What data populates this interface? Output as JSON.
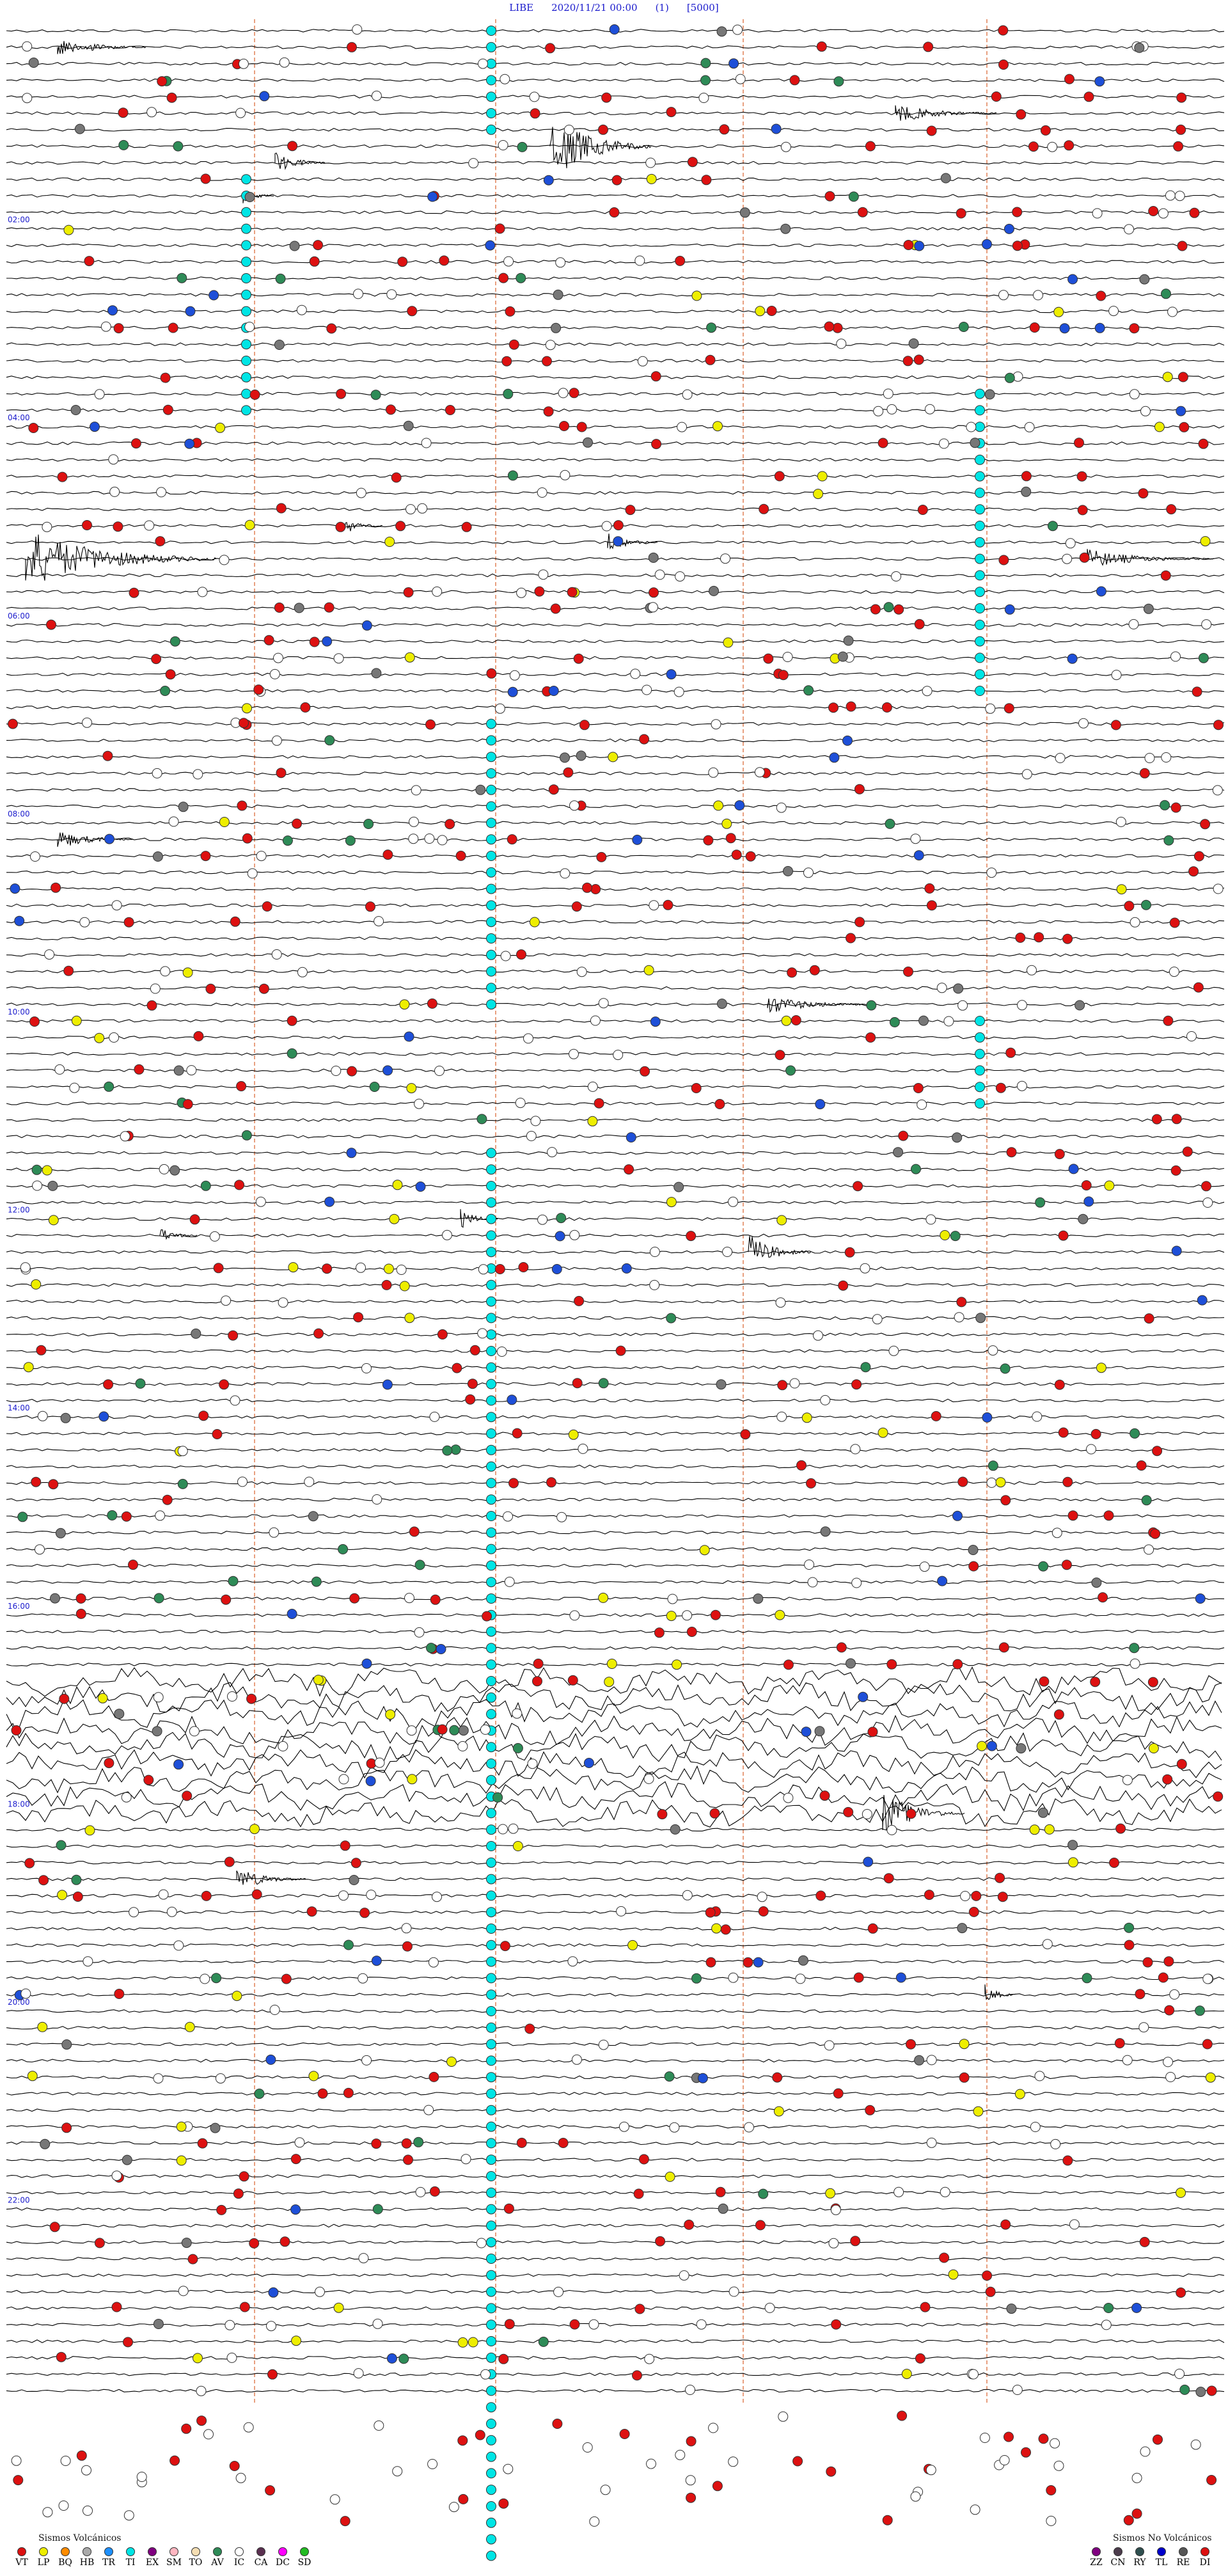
{
  "header": {
    "station": "LIBE",
    "datetime": "2020/11/21 00:00",
    "channel": "(1)",
    "scale": "[5000]"
  },
  "hour_labels": [
    "02:00",
    "04:00",
    "06:00",
    "08:00",
    "10:00",
    "12:00",
    "14:00",
    "16:00",
    "18:00",
    "20:00",
    "22:00"
  ],
  "legend_volcanic": {
    "title": "Sismos Volcánicos",
    "items": [
      {
        "code": "VT",
        "color": "#dd1111"
      },
      {
        "code": "LP",
        "color": "#eeee00"
      },
      {
        "code": "BQ",
        "color": "#ff8c00"
      },
      {
        "code": "HB",
        "color": "#aaaaaa"
      },
      {
        "code": "TR",
        "color": "#1e90ff"
      },
      {
        "code": "TI",
        "color": "#00e5e5"
      },
      {
        "code": "EX",
        "color": "#800080"
      },
      {
        "code": "SM",
        "color": "#ffb6c1"
      },
      {
        "code": "TO",
        "color": "#f5deb3"
      },
      {
        "code": "AV",
        "color": "#2e8b57"
      },
      {
        "code": "IC",
        "color": "#ffffff"
      },
      {
        "code": "CA",
        "color": "#5a3050"
      },
      {
        "code": "DC",
        "color": "#ff00ff"
      },
      {
        "code": "SD",
        "color": "#22bb22"
      }
    ]
  },
  "legend_nonvolcanic": {
    "title": "Sismos No Volcánicos",
    "items": [
      {
        "code": "ZZ",
        "color": "#800080"
      },
      {
        "code": "CN",
        "color": "#4b3b4b"
      },
      {
        "code": "RY",
        "color": "#2f4f4f"
      },
      {
        "code": "TL",
        "color": "#0000cc"
      },
      {
        "code": "RE",
        "color": "#555555"
      },
      {
        "code": "DI",
        "color": "#dd1111"
      }
    ]
  },
  "colors": {
    "trace": "#000000",
    "hour_label": "#1a1acc",
    "guide_line": "#e8a080",
    "event_red": "#dd1111",
    "event_white": "#ffffff",
    "event_cyan": "#00e5e5",
    "event_gray": "#777777",
    "event_yellow": "#eeee00",
    "event_blue": "#1e4fd8",
    "event_green": "#2e8b57"
  }
}
